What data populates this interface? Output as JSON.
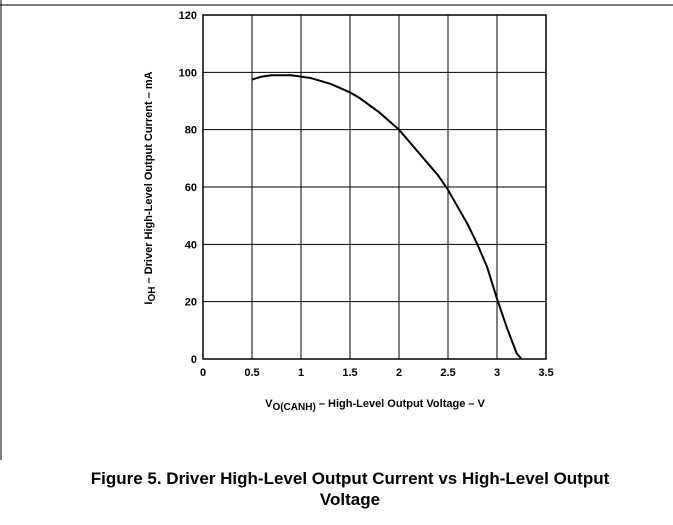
{
  "chart_data": {
    "type": "line",
    "caption": "Figure 5. Driver High-Level Output Current vs High-Level Output Voltage",
    "x_label": {
      "symbol": "V",
      "subscript": "O(CANH)",
      "text": " – High-Level Output Voltage – V"
    },
    "y_label": {
      "symbol": "I",
      "subscript": "OH",
      "text": "  – Driver High-Level Output Current – mA"
    },
    "x": [
      0.5,
      0.6,
      0.7,
      0.8,
      0.9,
      1.0,
      1.1,
      1.2,
      1.3,
      1.4,
      1.5,
      1.6,
      1.7,
      1.8,
      1.9,
      2.0,
      2.1,
      2.2,
      2.3,
      2.4,
      2.5,
      2.6,
      2.7,
      2.8,
      2.9,
      3.0,
      3.1,
      3.2,
      3.25
    ],
    "values": [
      97.5,
      98.5,
      99,
      99,
      99,
      98.5,
      98,
      97,
      96,
      94.5,
      93,
      91,
      88.5,
      86,
      83,
      80,
      76,
      72,
      68,
      64,
      59,
      53,
      47,
      40,
      32,
      21,
      11,
      2,
      0
    ],
    "color": "#000000",
    "xlim": [
      0,
      3.5
    ],
    "xticks": [
      0,
      0.5,
      1,
      1.5,
      2,
      2.5,
      3,
      3.5
    ],
    "ylim": [
      0,
      120
    ],
    "yticks": [
      0,
      20,
      40,
      60,
      80,
      100,
      120
    ],
    "grid": true
  }
}
